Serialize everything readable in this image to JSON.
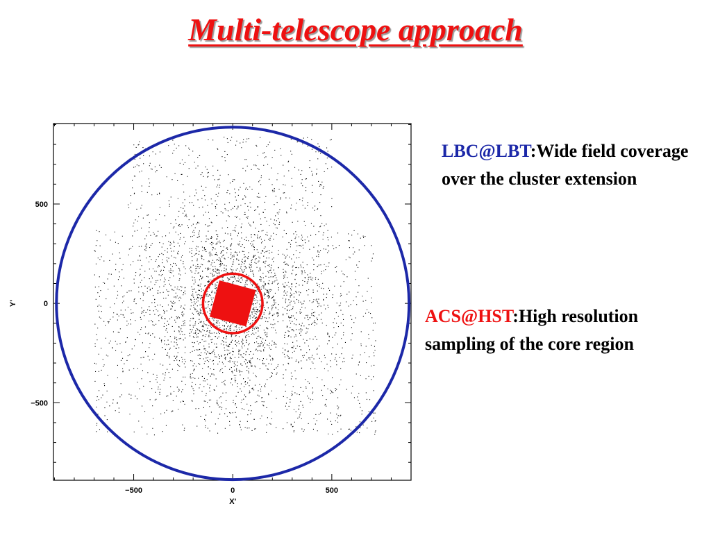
{
  "slide": {
    "title": "Multi-telescope approach"
  },
  "notes": {
    "lbc": {
      "instrument": "LBC@LBT",
      "text": ":Wide field coverage over the cluster extension"
    },
    "acs": {
      "instrument": "ACS@HST",
      "text": ":High resolution sampling of the core region"
    }
  },
  "colors": {
    "title": "#ee1111",
    "lbc_field": "#1c28a8",
    "acs_field": "#ee1111",
    "stars": "#000000"
  },
  "chart_data": {
    "type": "scatter",
    "title": "",
    "xlabel": "X'",
    "ylabel": "Y'",
    "xlim": [
      -905,
      900
    ],
    "ylim": [
      -890,
      905
    ],
    "xticks": [
      -500,
      0,
      500
    ],
    "yticks": [
      -500,
      0,
      500
    ],
    "xtick_labels": [
      "−500",
      "0",
      "500"
    ],
    "ytick_labels": [
      "−500",
      "0",
      "500"
    ],
    "grid": false,
    "legend": "none",
    "overlays": [
      {
        "name": "LBC field",
        "shape": "circle",
        "center": [
          0,
          0
        ],
        "radius": 890,
        "color": "#1c28a8"
      },
      {
        "name": "ACS field circle",
        "shape": "circle",
        "center": [
          0,
          0
        ],
        "radius": 150,
        "color": "#ee1111"
      },
      {
        "name": "ACS field square",
        "shape": "square",
        "center": [
          0,
          0
        ],
        "half_side": 95,
        "rotation_deg": 15,
        "color": "#ee1111"
      }
    ],
    "star_regions": [
      {
        "region": "upper chip",
        "x": [
          -530,
          500
        ],
        "y": [
          380,
          840
        ]
      },
      {
        "region": "left chip",
        "x": [
          -700,
          -240
        ],
        "y": [
          -660,
          370
        ]
      },
      {
        "region": "central chip",
        "x": [
          -220,
          230
        ],
        "y": [
          -660,
          370
        ]
      },
      {
        "region": "right chip",
        "x": [
          250,
          720
        ],
        "y": [
          -660,
          370
        ]
      }
    ]
  }
}
